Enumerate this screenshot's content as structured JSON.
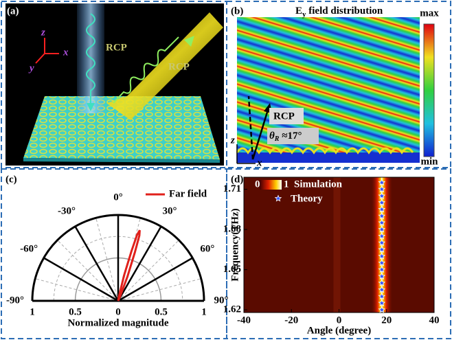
{
  "panel_a": {
    "label": "(a)",
    "axis_z": "z",
    "axis_x": "x",
    "axis_y": "y",
    "beam_in": "RCP",
    "beam_out": "RCP"
  },
  "panel_b": {
    "label": "(b)",
    "title": "E",
    "title_subscript": "y",
    "title_rest": " field distribution",
    "colorbar_max": "max",
    "colorbar_min": "min",
    "beam": "RCP",
    "angle_symbol": "θ",
    "angle_subscript": "R",
    "angle_text": " ≈17°",
    "axis_z": "z",
    "axis_x": "x"
  },
  "chart_data": [
    {
      "type": "polar",
      "label": "(c)",
      "xlabel": "Normalized magnitude",
      "angle_ticks": [
        {
          "value": -90,
          "label": "-90°"
        },
        {
          "value": -60,
          "label": "-60°"
        },
        {
          "value": -30,
          "label": "-30°"
        },
        {
          "value": 0,
          "label": "0°"
        },
        {
          "value": 30,
          "label": "30°"
        },
        {
          "value": 60,
          "label": "60°"
        },
        {
          "value": 90,
          "label": "90°"
        }
      ],
      "xticks": [
        {
          "value": -1,
          "label": "1"
        },
        {
          "value": -0.5,
          "label": "0.5"
        },
        0,
        0.5,
        1
      ],
      "series": [
        {
          "name": "Far field",
          "color": "#e0201b",
          "theta": [
            0,
            10,
            13,
            15,
            16,
            17,
            18,
            19,
            21,
            24,
            30
          ],
          "values": [
            0,
            0.05,
            0.3,
            0.6,
            0.8,
            0.86,
            0.8,
            0.6,
            0.3,
            0.05,
            0
          ]
        }
      ]
    },
    {
      "type": "heatmap",
      "label": "(d)",
      "xlabel": "Angle (degree)",
      "ylabel": "Frequency(THz)",
      "xlim": [
        -40,
        40
      ],
      "ylim": [
        1.618,
        1.719
      ],
      "xticks": [
        -40,
        -20,
        0,
        20,
        40
      ],
      "yticks": [
        1.62,
        1.65,
        1.68,
        1.71
      ],
      "colorbar_ticks": [
        0,
        1
      ],
      "series": [
        {
          "name": "Simulation"
        },
        {
          "name": "Theory",
          "type": "scatter",
          "color": "#3050ff",
          "x": [
            18,
            18,
            18,
            18,
            18,
            18,
            18,
            18,
            18,
            18,
            18,
            18,
            18,
            18,
            18,
            18,
            18,
            18,
            18,
            18
          ],
          "y": [
            1.62,
            1.625,
            1.63,
            1.635,
            1.64,
            1.645,
            1.65,
            1.655,
            1.66,
            1.665,
            1.67,
            1.675,
            1.68,
            1.685,
            1.69,
            1.695,
            1.7,
            1.705,
            1.71,
            1.715
          ]
        }
      ]
    }
  ]
}
